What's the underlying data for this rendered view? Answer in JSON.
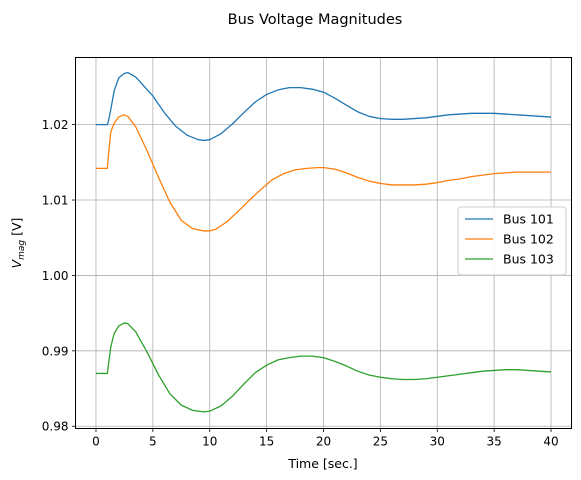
{
  "chart_data": {
    "type": "line",
    "title": "Bus Voltage Magnitudes",
    "xlabel": "Time [sec.]",
    "ylabel": {
      "base": "V",
      "sub": "mag",
      "rest": " [V]"
    },
    "xlim": [
      -1.8,
      41.8
    ],
    "ylim": [
      0.9797,
      1.0289
    ],
    "xticks": [
      0,
      5,
      10,
      15,
      20,
      25,
      30,
      35,
      40
    ],
    "yticks": [
      0.98,
      0.99,
      1.0,
      1.01,
      1.02
    ],
    "ytick_labels": [
      "0.98",
      "0.99",
      "1.00",
      "1.01",
      "1.02"
    ],
    "grid": true,
    "legend_position": "center-right",
    "series": [
      {
        "name": "Bus 101",
        "color": "#1f77b4",
        "x": [
          0,
          1,
          1.1,
          1.3,
          1.6,
          2.0,
          2.5,
          2.8,
          3.5,
          5,
          6,
          7,
          8,
          9,
          9.5,
          10,
          11,
          12,
          13,
          14,
          15,
          16,
          17,
          18,
          18.5,
          19,
          20,
          21,
          22,
          23,
          24,
          25,
          26,
          27,
          28,
          29,
          30,
          31,
          32,
          33,
          34,
          35,
          36,
          37,
          38,
          39,
          40
        ],
        "y": [
          1.02,
          1.02,
          1.0205,
          1.022,
          1.0245,
          1.0262,
          1.0268,
          1.0269,
          1.0263,
          1.0238,
          1.0216,
          1.0198,
          1.0186,
          1.018,
          1.0179,
          1.018,
          1.0188,
          1.0201,
          1.0216,
          1.023,
          1.024,
          1.0246,
          1.0249,
          1.0249,
          1.0248,
          1.0247,
          1.0243,
          1.0235,
          1.0226,
          1.0217,
          1.0211,
          1.0208,
          1.0207,
          1.0207,
          1.0208,
          1.0209,
          1.0211,
          1.0213,
          1.0214,
          1.0215,
          1.0215,
          1.0215,
          1.0214,
          1.0213,
          1.0212,
          1.0211,
          1.021
        ]
      },
      {
        "name": "Bus 102",
        "color": "#ff7f0e",
        "x": [
          0,
          1,
          1.1,
          1.3,
          1.6,
          2.0,
          2.4,
          2.8,
          3.5,
          4.5,
          5.5,
          6.5,
          7.5,
          8.5,
          9.5,
          10,
          10.5,
          11.5,
          12.5,
          13.5,
          14.5,
          15.5,
          16.5,
          17.5,
          18.5,
          19.5,
          20,
          21,
          22,
          23,
          24,
          25,
          26,
          27,
          28,
          29,
          30,
          31,
          32,
          33,
          34,
          35,
          36,
          37,
          38,
          39,
          40
        ],
        "y": [
          1.0142,
          1.0142,
          1.016,
          1.019,
          1.0202,
          1.021,
          1.0213,
          1.0211,
          1.0197,
          1.0165,
          1.013,
          1.0097,
          1.0073,
          1.0062,
          1.0059,
          1.0059,
          1.0061,
          1.0071,
          1.0085,
          1.01,
          1.0114,
          1.0127,
          1.0135,
          1.014,
          1.0142,
          1.0143,
          1.0143,
          1.0141,
          1.0136,
          1.013,
          1.0125,
          1.0122,
          1.012,
          1.012,
          1.012,
          1.0121,
          1.0123,
          1.0126,
          1.0128,
          1.0131,
          1.0133,
          1.0135,
          1.0136,
          1.0137,
          1.0137,
          1.0137,
          1.0137
        ]
      },
      {
        "name": "Bus 103",
        "color": "#2ca02c",
        "x": [
          0,
          1,
          1.1,
          1.3,
          1.6,
          2.0,
          2.5,
          2.8,
          3.5,
          4.5,
          5.5,
          6.5,
          7.5,
          8.5,
          9.5,
          10,
          11,
          12,
          13,
          14,
          15,
          16,
          17,
          18,
          18.5,
          19,
          20,
          21,
          22,
          23,
          24,
          25,
          26,
          27,
          28,
          29,
          30,
          31,
          32,
          33,
          34,
          35,
          36,
          37,
          38,
          39,
          40
        ],
        "y": [
          0.987,
          0.987,
          0.9882,
          0.9905,
          0.9923,
          0.9933,
          0.9937,
          0.9936,
          0.9925,
          0.9898,
          0.9868,
          0.9843,
          0.9828,
          0.9821,
          0.9819,
          0.982,
          0.9827,
          0.984,
          0.9856,
          0.9871,
          0.9881,
          0.9888,
          0.9891,
          0.9893,
          0.9893,
          0.9893,
          0.9891,
          0.9886,
          0.988,
          0.9873,
          0.9868,
          0.9865,
          0.9863,
          0.9862,
          0.9862,
          0.9863,
          0.9865,
          0.9867,
          0.9869,
          0.9871,
          0.9873,
          0.9874,
          0.9875,
          0.9875,
          0.9874,
          0.9873,
          0.9872
        ]
      }
    ]
  }
}
